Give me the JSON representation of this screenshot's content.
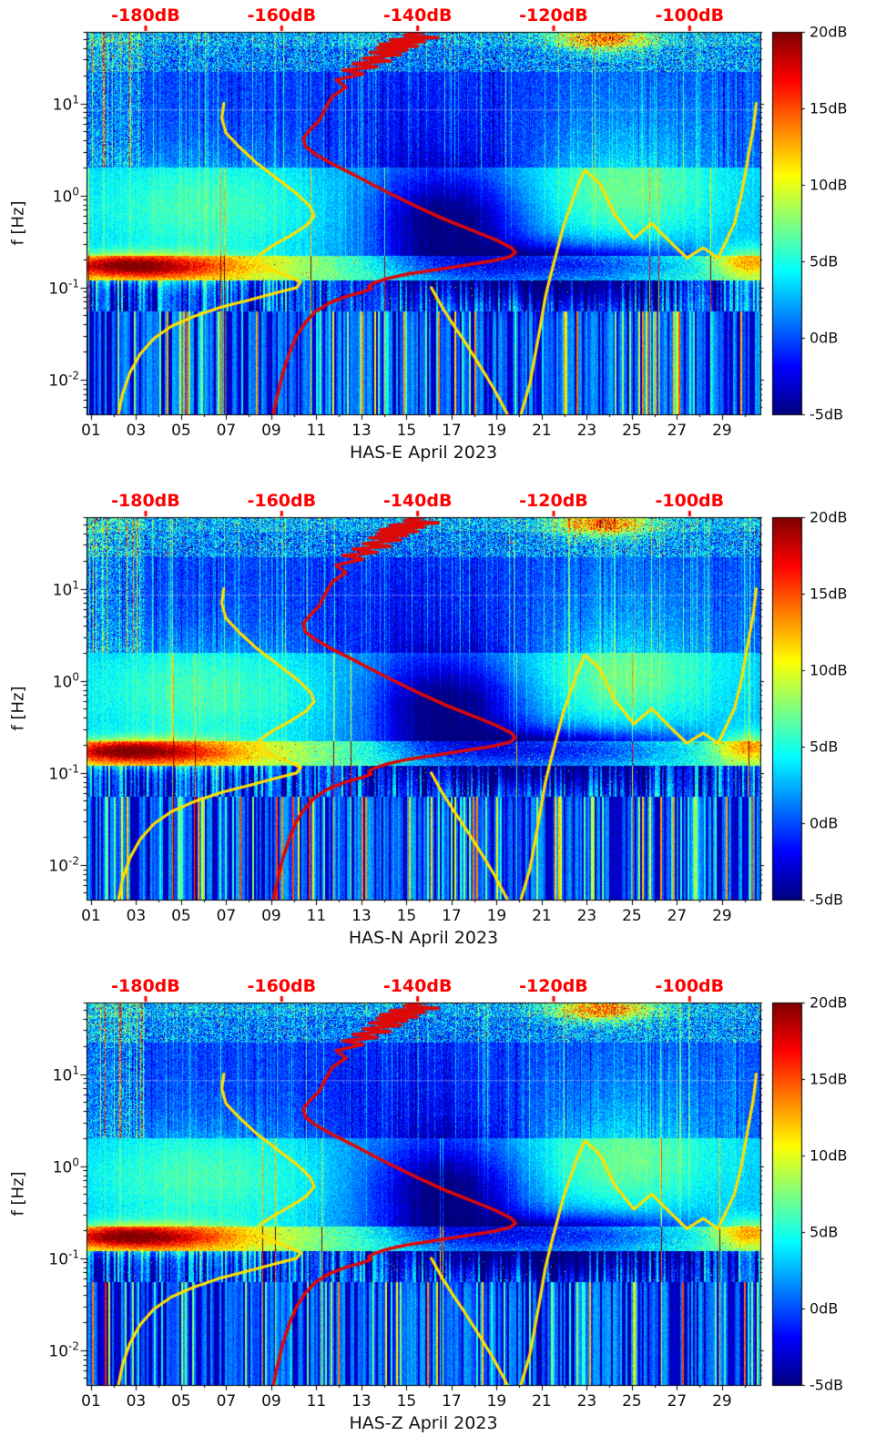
{
  "page": {
    "background": "#ffffff"
  },
  "chart_data": {
    "type": "heatmap",
    "panels": [
      {
        "title": "HAS-E April 2023"
      },
      {
        "title": "HAS-N April 2023"
      },
      {
        "title": "HAS-Z April 2023"
      }
    ],
    "x_axis": {
      "tick_labels": [
        "01",
        "03",
        "05",
        "07",
        "09",
        "11",
        "13",
        "15",
        "17",
        "19",
        "21",
        "23",
        "25",
        "27",
        "29"
      ],
      "tick_days": [
        1,
        3,
        5,
        7,
        9,
        11,
        13,
        15,
        17,
        19,
        21,
        23,
        25,
        27,
        29
      ],
      "range_days": [
        0.8,
        30.7
      ],
      "grid": false
    },
    "y_axis": {
      "label": "f [Hz]",
      "scale": "log",
      "tick_exponents": [
        1,
        0,
        -1,
        -2
      ],
      "range_hz": [
        0.0042,
        60
      ]
    },
    "top_axis": {
      "unit": "dB",
      "tick_labels": [
        "-180dB",
        "-160dB",
        "-140dB",
        "-120dB",
        "-100dB"
      ],
      "tick_values": [
        -180,
        -160,
        -140,
        -120,
        -100
      ],
      "range_db": [
        -188.7,
        -89.6
      ],
      "color": "#ff0000"
    },
    "colorbar": {
      "colormap": "jet",
      "tick_labels": [
        "20dB",
        "15dB",
        "10dB",
        "5dB",
        "0dB",
        "-5dB"
      ],
      "tick_values": [
        20,
        15,
        10,
        5,
        0,
        -5
      ],
      "range_db": [
        -5,
        20
      ]
    },
    "overlays": {
      "station_psd_curve": {
        "color": "#dd0808",
        "points_db_hz": [
          [
            -139,
            60
          ],
          [
            -142,
            55
          ],
          [
            -137,
            52
          ],
          [
            -144,
            49
          ],
          [
            -139,
            47
          ],
          [
            -145.5,
            44
          ],
          [
            -140,
            42
          ],
          [
            -146,
            40
          ],
          [
            -141.5,
            38
          ],
          [
            -147,
            36
          ],
          [
            -142.5,
            34
          ],
          [
            -148,
            31
          ],
          [
            -144,
            29
          ],
          [
            -149.5,
            27
          ],
          [
            -146,
            25
          ],
          [
            -151,
            23
          ],
          [
            -148,
            21
          ],
          [
            -152,
            18
          ],
          [
            -150.5,
            15
          ],
          [
            -152.5,
            12
          ],
          [
            -153.5,
            9
          ],
          [
            -154.5,
            6.5
          ],
          [
            -156,
            5
          ],
          [
            -156.8,
            4.2
          ],
          [
            -156.5,
            3.4
          ],
          [
            -155,
            2.8
          ],
          [
            -152.5,
            2.2
          ],
          [
            -149.5,
            1.7
          ],
          [
            -146.5,
            1.3
          ],
          [
            -143.5,
            1.0
          ],
          [
            -140,
            0.75
          ],
          [
            -136,
            0.55
          ],
          [
            -132,
            0.42
          ],
          [
            -128.5,
            0.33
          ],
          [
            -126.2,
            0.27
          ],
          [
            -125.6,
            0.24
          ],
          [
            -126.5,
            0.215
          ],
          [
            -129,
            0.195
          ],
          [
            -133,
            0.175
          ],
          [
            -137.5,
            0.155
          ],
          [
            -141.5,
            0.14
          ],
          [
            -144.5,
            0.125
          ],
          [
            -146.5,
            0.112
          ],
          [
            -147.2,
            0.103
          ],
          [
            -146.8,
            0.097
          ],
          [
            -148,
            0.09
          ],
          [
            -150.5,
            0.08
          ],
          [
            -153,
            0.068
          ],
          [
            -155,
            0.055
          ],
          [
            -156.5,
            0.042
          ],
          [
            -157.8,
            0.03
          ],
          [
            -158.8,
            0.02
          ],
          [
            -159.8,
            0.012
          ],
          [
            -160.8,
            0.006
          ],
          [
            -161.2,
            0.0042
          ]
        ]
      },
      "noise_model_curves": {
        "color": "#ffdf00",
        "polylines_db_hz": [
          [
            [
              -168.5,
              10
            ],
            [
              -168.8,
              7
            ],
            [
              -168.2,
              4.8
            ],
            [
              -166.3,
              3.4
            ],
            [
              -163.8,
              2.3
            ],
            [
              -160.8,
              1.55
            ],
            [
              -157.8,
              1.05
            ],
            [
              -155.8,
              0.76
            ],
            [
              -155.2,
              0.6
            ],
            [
              -156.4,
              0.47
            ],
            [
              -158.6,
              0.37
            ],
            [
              -161.2,
              0.29
            ],
            [
              -163.2,
              0.23
            ],
            [
              -163.8,
              0.19
            ],
            [
              -162,
              0.16
            ],
            [
              -159.2,
              0.135
            ],
            [
              -157.2,
              0.115
            ],
            [
              -157.8,
              0.1
            ],
            [
              -160.5,
              0.089
            ],
            [
              -164.5,
              0.074
            ],
            [
              -169,
              0.061
            ],
            [
              -172.8,
              0.049
            ],
            [
              -176.2,
              0.038
            ],
            [
              -178.8,
              0.028
            ],
            [
              -180.8,
              0.019
            ],
            [
              -182.3,
              0.012
            ],
            [
              -183.4,
              0.007
            ],
            [
              -184,
              0.0042
            ]
          ],
          [
            [
              -138,
              0.1
            ],
            [
              -136.5,
              0.063
            ],
            [
              -134.8,
              0.04
            ],
            [
              -132.8,
              0.024
            ],
            [
              -130.8,
              0.014
            ],
            [
              -128.8,
              0.008
            ],
            [
              -127.2,
              0.0048
            ],
            [
              -126.8,
              0.0042
            ]
          ],
          [
            [
              -124.8,
              0.0042
            ],
            [
              -123.5,
              0.009
            ],
            [
              -122.2,
              0.03
            ],
            [
              -121.2,
              0.08
            ],
            [
              -120.4,
              0.14
            ],
            [
              -118.6,
              0.45
            ],
            [
              -116.6,
              1.2
            ],
            [
              -115.4,
              1.9
            ],
            [
              -113.2,
              1.35
            ],
            [
              -111.0,
              0.62
            ],
            [
              -108.2,
              0.34
            ],
            [
              -105.6,
              0.5
            ],
            [
              -102.8,
              0.31
            ],
            [
              -100.4,
              0.21
            ],
            [
              -98.0,
              0.27
            ],
            [
              -95.8,
              0.21
            ],
            [
              -93.4,
              0.5
            ],
            [
              -92.4,
              1.0
            ],
            [
              -91.4,
              2.6
            ],
            [
              -90.6,
              5.5
            ],
            [
              -90.2,
              10
            ]
          ]
        ]
      }
    },
    "spectrogram_model": {
      "bands": [
        {
          "name": "top",
          "f_range": [
            22,
            60
          ],
          "base_db": 1.2,
          "noise_db": 4.5
        },
        {
          "name": "mid",
          "f_range": [
            2,
            22
          ],
          "base_db": -0.6,
          "noise_db": 1.8
        },
        {
          "name": "cloud",
          "f_range": [
            0.22,
            2
          ],
          "base_db": 2.4,
          "noise_db": 1.3
        },
        {
          "name": "microseism",
          "f_range": [
            0.12,
            0.22
          ],
          "base_db": 7,
          "noise_db": 2.2
        },
        {
          "name": "transition",
          "f_range": [
            0.055,
            0.12
          ],
          "base_db": -0.5,
          "noise_db": 2.0
        },
        {
          "name": "low",
          "f_range": [
            0.0042,
            0.055
          ],
          "base_db": 0,
          "noise_db": 1.0
        }
      ],
      "features": [
        {
          "name": "dark-blob-mid-month",
          "amp_db": -8.5,
          "day": 16.8,
          "day_sigma": 2.4,
          "logf": -0.32,
          "logf_sigma": 0.4
        },
        {
          "name": "dark-band-right",
          "amp_db": -8,
          "day": 22,
          "day_sigma": 4.2,
          "logf": -0.74,
          "logf_sigma": 0.15
        },
        {
          "name": "bright-microseism-left",
          "amp_db": 9.5,
          "day": 3.8,
          "day_sigma": 3.2,
          "logf": -0.78,
          "logf_sigma": 0.11
        },
        {
          "name": "bright-microseism-left-core",
          "amp_db": 5,
          "day": 2.2,
          "day_sigma": 1.6,
          "logf": -0.76,
          "logf_sigma": 0.07
        },
        {
          "name": "bright-right-edge",
          "amp_db": 7,
          "day": 30.2,
          "day_sigma": 1.1,
          "logf": -0.72,
          "logf_sigma": 0.12
        },
        {
          "name": "cyan-cloud-left",
          "amp_db": 3.5,
          "day": 6,
          "day_sigma": 4,
          "logf": -0.12,
          "logf_sigma": 0.42
        },
        {
          "name": "cyan-cloud-right",
          "amp_db": 3.8,
          "day": 24.5,
          "day_sigma": 3,
          "logf": 0.02,
          "logf_sigma": 0.38
        },
        {
          "name": "orange-patch-top-right",
          "amp_db": 11,
          "day": 23.7,
          "day_sigma": 1.5,
          "logf": 1.71,
          "logf_sigma": 0.1
        },
        {
          "name": "dim-mid-centre",
          "amp_db": -1.5,
          "day": 15.5,
          "day_sigma": 3,
          "logf": 0.75,
          "logf_sigma": 0.55
        },
        {
          "name": "bright-mid-right",
          "amp_db": 1.5,
          "day": 25.5,
          "day_sigma": 3.5,
          "logf": 0.75,
          "logf_sigma": 0.55
        },
        {
          "name": "dark-transition-right",
          "amp_db": -3,
          "day": 21.5,
          "day_sigma": 4,
          "logf": -1.05,
          "logf_sigma": 0.12
        }
      ]
    }
  }
}
